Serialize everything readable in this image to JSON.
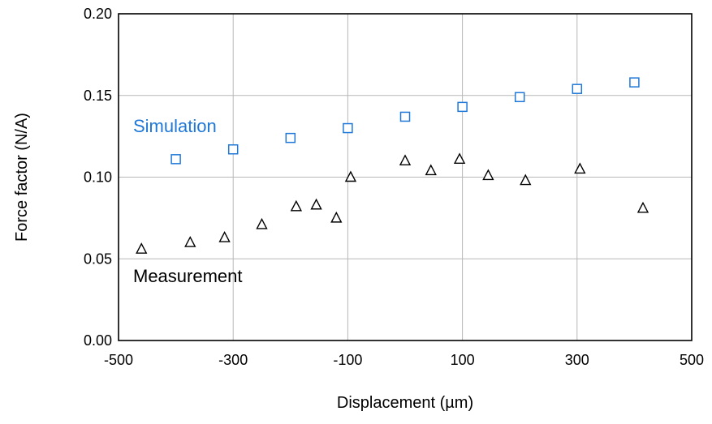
{
  "chart_data": {
    "type": "scatter",
    "title": "",
    "xlabel": "Displacement (µm)",
    "ylabel": "Force factor (N/A)",
    "xlim": [
      -500,
      500
    ],
    "ylim": [
      0,
      0.2
    ],
    "xticks": [
      "-500",
      "-300",
      "-100",
      "100",
      "300",
      "500"
    ],
    "yticks": [
      "0.00",
      "0.05",
      "0.10",
      "0.15",
      "0.20"
    ],
    "grid": true,
    "legend": "none",
    "annotations": [
      {
        "text": "Simulation",
        "series": "Simulation"
      },
      {
        "text": "Measurement",
        "series": "Measurement"
      }
    ],
    "series": [
      {
        "name": "Simulation",
        "marker": "square",
        "color": "#1f78d8",
        "x": [
          -400,
          -300,
          -200,
          -100,
          0,
          100,
          200,
          300,
          400
        ],
        "y": [
          0.111,
          0.117,
          0.124,
          0.13,
          0.137,
          0.143,
          0.149,
          0.154,
          0.158
        ]
      },
      {
        "name": "Measurement",
        "marker": "triangle",
        "color": "#000000",
        "x": [
          -460,
          -375,
          -315,
          -250,
          -190,
          -155,
          -120,
          -95,
          0,
          45,
          95,
          145,
          210,
          305,
          415
        ],
        "y": [
          0.056,
          0.06,
          0.063,
          0.071,
          0.082,
          0.083,
          0.075,
          0.1,
          0.11,
          0.104,
          0.111,
          0.101,
          0.098,
          0.105,
          0.081
        ]
      }
    ]
  }
}
